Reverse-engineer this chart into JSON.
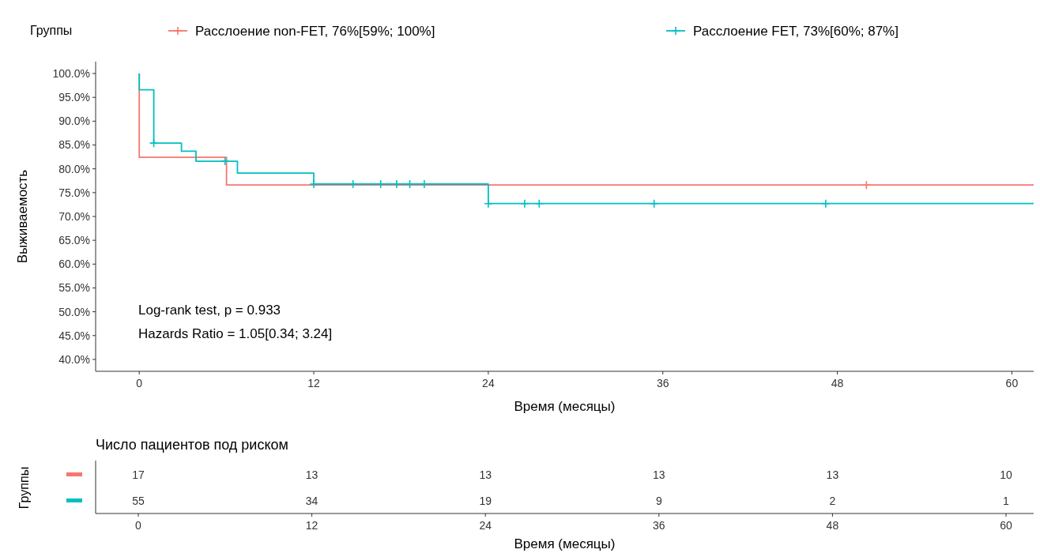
{
  "chart_data": [
    {
      "type": "step",
      "legend_title": "Группы",
      "legend": "top",
      "xlabel": "Время (месяцы)",
      "ylabel": "Выживаемость",
      "xlim": [
        -3,
        61.5
      ],
      "xticks": [
        0,
        12,
        24,
        36,
        48,
        60
      ],
      "ylim": [
        37.5,
        102.5
      ],
      "yticks": [
        {
          "value": 40,
          "label": "40.0%"
        },
        {
          "value": 45,
          "label": "45.0%"
        },
        {
          "value": 50,
          "label": "50.0%"
        },
        {
          "value": 55,
          "label": "55.0%"
        },
        {
          "value": 60,
          "label": "60.0%"
        },
        {
          "value": 65,
          "label": "65.0%"
        },
        {
          "value": 70,
          "label": "70.0%"
        },
        {
          "value": 75,
          "label": "75.0%"
        },
        {
          "value": 80,
          "label": "80.0%"
        },
        {
          "value": 85,
          "label": "85.0%"
        },
        {
          "value": 90,
          "label": "90.0%"
        },
        {
          "value": 95,
          "label": "95.0%"
        },
        {
          "value": 100,
          "label": "100.0%"
        }
      ],
      "grid": false,
      "annotations": [
        "Log-rank test, p = 0.933",
        "Hazards Ratio = 1.05[0.34; 3.24]"
      ],
      "series": [
        {
          "name": "Расслоение non-FET, 76%[59%; 100%]",
          "color": "#f8766d",
          "x": [
            0,
            0,
            6,
            61.5
          ],
          "values": [
            100,
            82.4,
            76.6,
            76.6
          ]
        },
        {
          "name": "Расслоение FET, 73%[60%; 87%]",
          "color": "#00bfc4",
          "x": [
            0,
            0,
            1,
            2.9,
            3.9,
            6.75,
            12,
            24,
            61.5
          ],
          "values": [
            100,
            96.6,
            85.4,
            83.7,
            81.6,
            79.1,
            76.8,
            72.7,
            72.7
          ]
        },
        {
          "type": "scatter",
          "marker": "cross",
          "color": "#f8766d",
          "x": [
            50
          ],
          "values": [
            76.6
          ]
        },
        {
          "type": "scatter",
          "marker": "cross",
          "color": "#00bfc4",
          "x": [
            1,
            5.9,
            12,
            14.7,
            16.6,
            17.7,
            18.6,
            19.6,
            24,
            26.5,
            27.5,
            35.4,
            47.2
          ],
          "values": [
            85.4,
            81.6,
            76.8,
            76.8,
            76.8,
            76.8,
            76.8,
            76.8,
            72.7,
            72.7,
            72.7,
            72.7,
            72.7
          ]
        }
      ]
    },
    {
      "type": "heatmap",
      "title": "Число пациентов под риском",
      "ylabel": "Группы",
      "xlabel": "Время (месяцы)",
      "categories": [
        "0",
        "12",
        "24",
        "36",
        "48",
        "60"
      ],
      "y_categories": [
        null,
        null
      ],
      "data_labels": true,
      "cells": [
        [
          17,
          13,
          13,
          13,
          13,
          10
        ],
        [
          55,
          34,
          19,
          9,
          2,
          1
        ]
      ]
    }
  ]
}
